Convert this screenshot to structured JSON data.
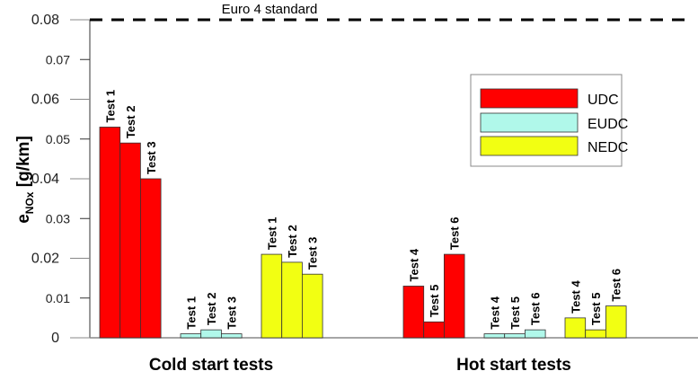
{
  "chart_data": {
    "type": "bar",
    "ylabel": "e",
    "ylabel_subscript": "NOx",
    "ylabel_unit": "[g/km]",
    "ylim": [
      0,
      0.08
    ],
    "yticks": [
      "0",
      "0.01",
      "0.02",
      "0.03",
      "0.04",
      "0.05",
      "0.06",
      "0.07",
      "0.08"
    ],
    "grid": false,
    "legend_position": "top-right",
    "reference_line": {
      "label": "Euro 4 standard",
      "value": 0.08,
      "style": "dashed"
    },
    "series": [
      {
        "name": "UDC",
        "color": "#ff0000"
      },
      {
        "name": "EUDC",
        "color": "#b0f8ea"
      },
      {
        "name": "NEDC",
        "color": "#f2ff12"
      }
    ],
    "groups": [
      {
        "label": "Cold start tests",
        "clusters": [
          {
            "series": "UDC",
            "bars": [
              {
                "label": "Test 1",
                "value": 0.053
              },
              {
                "label": "Test 2",
                "value": 0.049
              },
              {
                "label": "Test 3",
                "value": 0.04
              }
            ]
          },
          {
            "series": "EUDC",
            "bars": [
              {
                "label": "Test 1",
                "value": 0.001
              },
              {
                "label": "Test 2",
                "value": 0.002
              },
              {
                "label": "Test 3",
                "value": 0.001
              }
            ]
          },
          {
            "series": "NEDC",
            "bars": [
              {
                "label": "Test 1",
                "value": 0.021
              },
              {
                "label": "Test 2",
                "value": 0.019
              },
              {
                "label": "Test 3",
                "value": 0.016
              }
            ]
          }
        ]
      },
      {
        "label": "Hot start tests",
        "clusters": [
          {
            "series": "UDC",
            "bars": [
              {
                "label": "Test 4",
                "value": 0.013
              },
              {
                "label": "Test 5",
                "value": 0.004
              },
              {
                "label": "Test 6",
                "value": 0.021
              }
            ]
          },
          {
            "series": "EUDC",
            "bars": [
              {
                "label": "Test 4",
                "value": 0.001
              },
              {
                "label": "Test 5",
                "value": 0.001
              },
              {
                "label": "Test 6",
                "value": 0.002
              }
            ]
          },
          {
            "series": "NEDC",
            "bars": [
              {
                "label": "Test 4",
                "value": 0.005
              },
              {
                "label": "Test 5",
                "value": 0.002
              },
              {
                "label": "Test 6",
                "value": 0.008
              }
            ]
          }
        ]
      }
    ]
  }
}
